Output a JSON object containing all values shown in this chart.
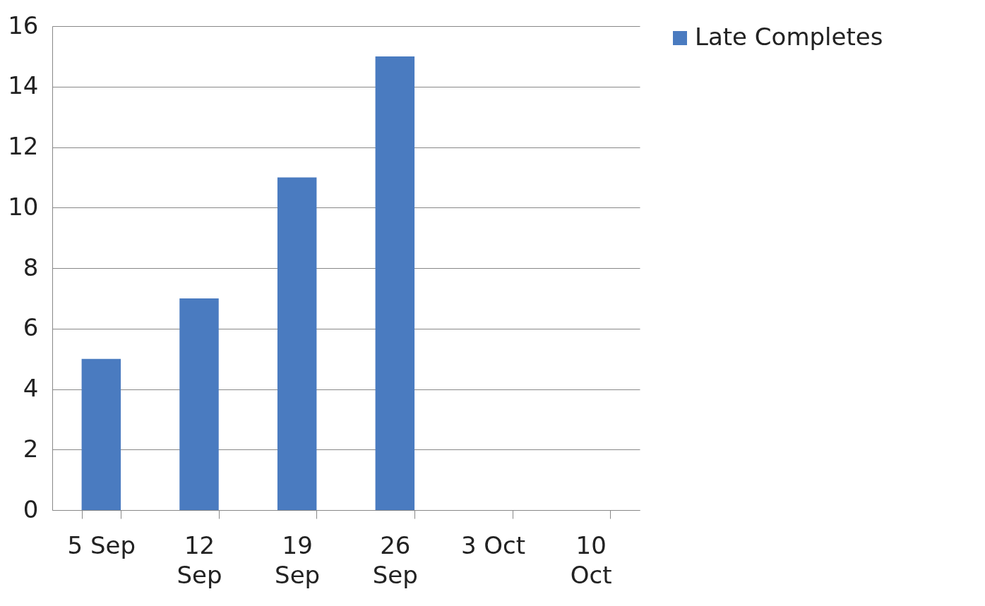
{
  "chart_data": {
    "type": "bar",
    "categories": [
      "5 Sep",
      "12 Sep",
      "19 Sep",
      "26 Sep",
      "3 Oct",
      "10 Oct"
    ],
    "series": [
      {
        "name": "Late Completes",
        "color": "#4a7bc0",
        "values": [
          5,
          7,
          11,
          15,
          null,
          null
        ]
      }
    ],
    "ylim": [
      0,
      16
    ],
    "yticks": [
      0,
      2,
      4,
      6,
      8,
      10,
      12,
      14,
      16
    ],
    "grid": "y",
    "legend": "right"
  }
}
